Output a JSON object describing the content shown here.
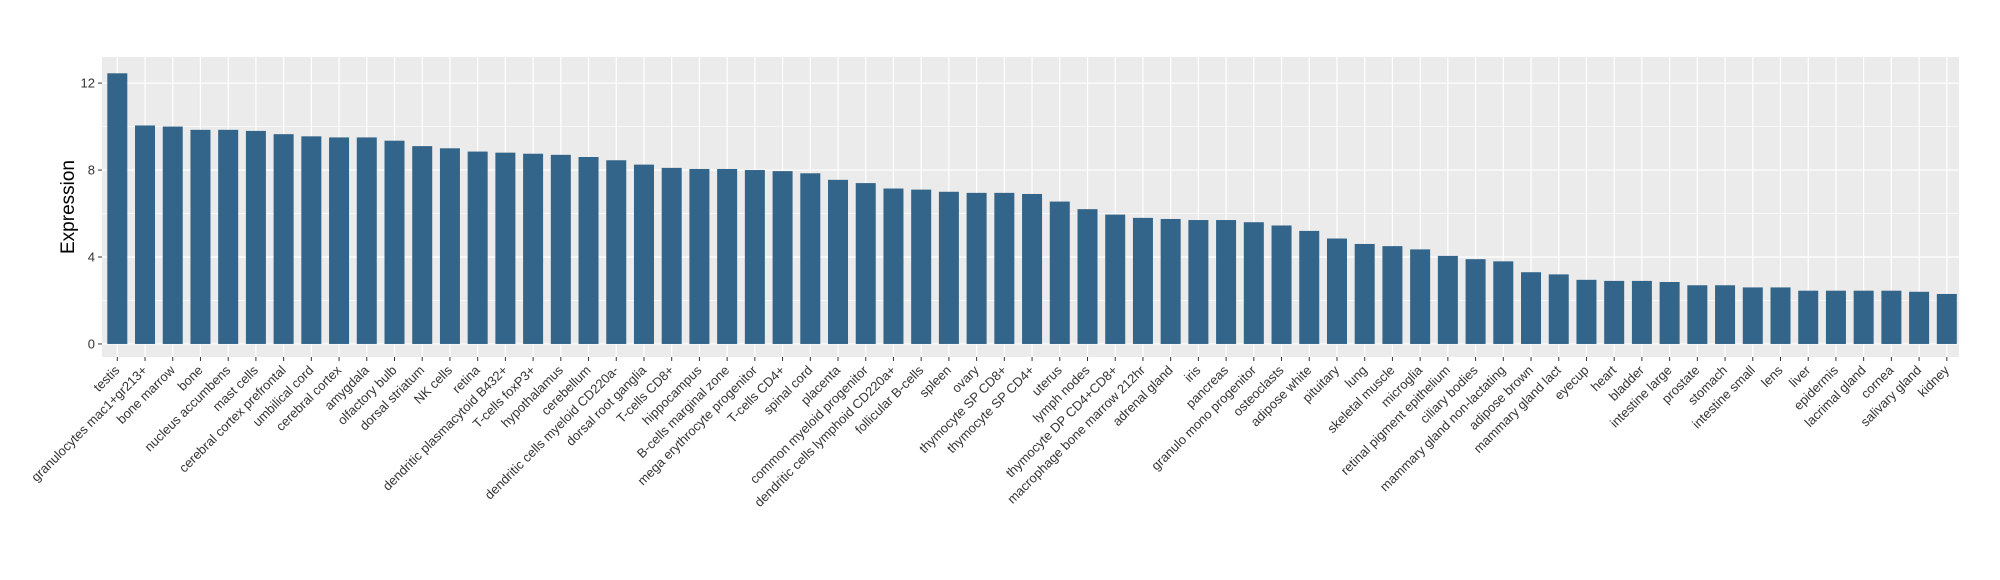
{
  "chart_data": {
    "type": "bar",
    "title": "",
    "xlabel": "",
    "ylabel": "Expression",
    "ylim": [
      -0.6,
      13.2
    ],
    "yticks": [
      0,
      4,
      8,
      12
    ],
    "grid": true,
    "colors": {
      "bar": "#336489",
      "panel": "#EBEBEB",
      "grid": "#FFFFFF"
    },
    "categories": [
      "testis",
      "granulocytes mac1+gr213+",
      "bone marrow",
      "bone",
      "nucleus accumbens",
      "mast cells",
      "cerebral cortex prefrontal",
      "umbilical cord",
      "cerebral cortex",
      "amygdala",
      "olfactory bulb",
      "dorsal striatum",
      "NK cells",
      "retina",
      "dendritic plasmacytoid B432+",
      "T-cells foxP3+",
      "hypothalamus",
      "cerebellum",
      "dendritic cells myeloid CD220a-",
      "dorsal root ganglia",
      "T-cells CD8+",
      "hippocampus",
      "B-cells marginal zone",
      "mega erythrocyte progenitor",
      "T-cells CD4+",
      "spinal cord",
      "placenta",
      "common myeloid progenitor",
      "dendritic cells lymphoid CD220a+",
      "follicular B-cells",
      "spleen",
      "ovary",
      "thymocyte SP CD8+",
      "thymocyte SP CD4+",
      "uterus",
      "lymph nodes",
      "thymocyte DP CD4+CD8+",
      "macrophage bone marrow 212hr",
      "adrenal gland",
      "iris",
      "pancreas",
      "granulo mono progenitor",
      "osteoclasts",
      "adipose white",
      "pituitary",
      "lung",
      "skeletal muscle",
      "microglia",
      "retinal pigment epithelium",
      "ciliary bodies",
      "mammary gland non-lactating",
      "adipose brown",
      "mammary gland  lact",
      "eyecup",
      "heart",
      "bladder",
      "intestine large",
      "prostate",
      "stomach",
      "intestine small",
      "lens",
      "liver",
      "epidermis",
      "lacrimal gland",
      "cornea",
      "salivary gland",
      "kidney"
    ],
    "values": [
      12.45,
      10.05,
      10.0,
      9.85,
      9.85,
      9.8,
      9.65,
      9.55,
      9.5,
      9.5,
      9.35,
      9.1,
      9.0,
      8.85,
      8.8,
      8.75,
      8.7,
      8.6,
      8.45,
      8.25,
      8.1,
      8.05,
      8.05,
      8.0,
      7.95,
      7.85,
      7.55,
      7.4,
      7.15,
      7.1,
      7.0,
      6.95,
      6.95,
      6.9,
      6.55,
      6.2,
      5.95,
      5.8,
      5.75,
      5.7,
      5.7,
      5.6,
      5.45,
      5.2,
      4.85,
      4.6,
      4.5,
      4.35,
      4.05,
      3.9,
      3.8,
      3.3,
      3.2,
      2.95,
      2.9,
      2.9,
      2.85,
      2.7,
      2.7,
      2.6,
      2.6,
      2.45,
      2.45,
      2.45,
      2.45,
      2.4,
      2.3
    ]
  }
}
